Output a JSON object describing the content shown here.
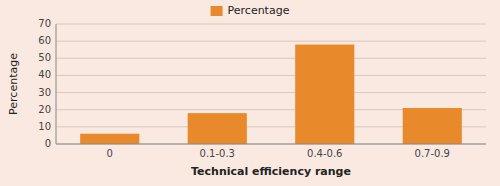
{
  "chart_data": {
    "type": "bar",
    "categories": [
      "0",
      "0.1-0.3",
      "0.4-0.6",
      "0.7-0.9"
    ],
    "series": [
      {
        "name": "Percentage",
        "color": "#E8892B",
        "values": [
          6,
          18,
          58,
          21
        ]
      }
    ],
    "xlabel": "Technical efficiency range",
    "ylabel": "Percentage",
    "ylim": [
      0,
      70
    ],
    "yticks": [
      0,
      10,
      20,
      30,
      40,
      50,
      60,
      70
    ],
    "grid": true,
    "legend": "top"
  }
}
